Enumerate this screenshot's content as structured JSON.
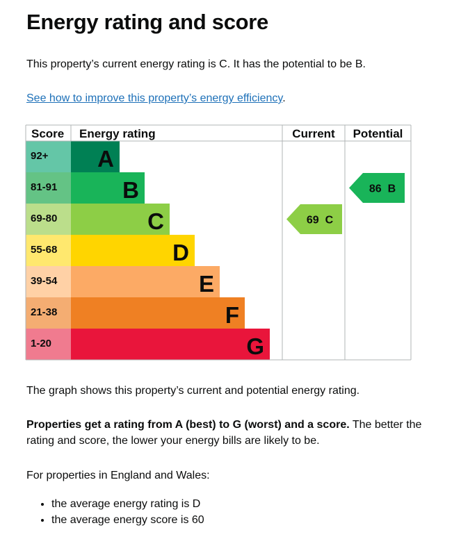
{
  "heading": "Energy rating and score",
  "intro": "This property’s current energy rating is C. It has the potential to be B.",
  "link_text": "See how to improve this property’s energy efficiency",
  "link_suffix": ".",
  "graph_note": "The graph shows this property’s current and potential energy rating.",
  "explain_bold": "Properties get a rating from A (best) to G (worst) and a score.",
  "explain_rest": " The better the rating and score, the lower your energy bills are likely to be.",
  "region_text": "For properties in England and Wales:",
  "bullets": [
    "the average energy rating is D",
    "the average energy score is 60"
  ],
  "chart_data": {
    "type": "bar",
    "columns": [
      "Score",
      "Energy rating",
      "Current",
      "Potential"
    ],
    "bands": [
      {
        "letter": "A",
        "range": "92+",
        "color": "#008054",
        "score_color": "#64c6a7"
      },
      {
        "letter": "B",
        "range": "81-91",
        "color": "#19b459",
        "score_color": "#64c385"
      },
      {
        "letter": "C",
        "range": "69-80",
        "color": "#8dce46",
        "score_color": "#bbde8b"
      },
      {
        "letter": "D",
        "range": "55-68",
        "color": "#ffd500",
        "score_color": "#ffe86e"
      },
      {
        "letter": "E",
        "range": "39-54",
        "color": "#fcaa65",
        "score_color": "#ffd1a6"
      },
      {
        "letter": "F",
        "range": "21-38",
        "color": "#ef8023",
        "score_color": "#f4ad72"
      },
      {
        "letter": "G",
        "range": "1-20",
        "color": "#e9153b",
        "score_color": "#f07b8f"
      }
    ],
    "current": {
      "score": 69,
      "band": "C",
      "label": "69  C",
      "color": "#8dce46"
    },
    "potential": {
      "score": 86,
      "band": "B",
      "label": "86  B",
      "color": "#19b459"
    }
  }
}
